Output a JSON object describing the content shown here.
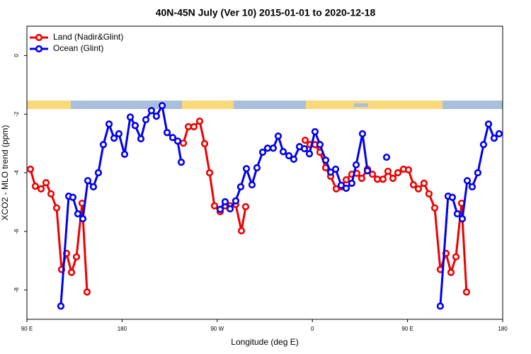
{
  "chart_data": {
    "type": "line",
    "title": "40N-45N July (Ver 10)   2015-01-01 to 2020-12-18",
    "x_label": "Longitude (deg E)",
    "y_label": "XCO2 - MLO trend (ppm)",
    "xlim": [
      90,
      540
    ],
    "xticks": [
      {
        "value": 90,
        "label": "90 E"
      },
      180,
      {
        "value": 270,
        "label": "90 W"
      },
      {
        "value": 360,
        "label": "0"
      },
      {
        "value": 450,
        "label": "90 E"
      },
      {
        "value": 540,
        "label": "180"
      }
    ],
    "ylim": [
      -9,
      1
    ],
    "yticks": [
      -8,
      -6,
      -4,
      -2,
      0
    ],
    "legend": "top-left",
    "series": [
      {
        "name": "Land (Nadir&Glint)",
        "color": "#ee0000",
        "x": [
          93.3,
          98.0,
          103.4,
          108.1,
          112.8,
          118.1,
          122.8,
          127.5,
          132.2,
          136.9,
          142.2,
          146.9,
          200,
          238.0,
          242.7,
          248.0,
          253.4,
          258.1,
          262.8,
          267.4,
          272.8,
          277.5,
          282.2,
          287.5,
          292.9,
          296.9,
          330,
          353.2,
          357.8,
          362.5,
          367.2,
          372.6,
          377.3,
          382.6,
          387.3,
          392.0,
          397.3,
          402.0,
          406.7,
          412.1,
          416.8,
          421.5,
          426.8,
          431.5,
          436.2,
          440.9,
          446.2,
          450.9,
          455.6,
          460.3,
          465.6,
          470.3,
          475.7,
          481.0,
          486.4,
          491.1,
          495.8,
          501.1,
          505.8
        ],
        "values": [
          -3.88,
          -4.46,
          -4.55,
          -4.34,
          -4.72,
          -5.2,
          -7.3,
          -6.75,
          -7.4,
          -6.87,
          -5.04,
          -8.07,
          null,
          -2.99,
          -2.43,
          -2.43,
          -2.24,
          -3.01,
          -4.0,
          -5.13,
          -5.33,
          -5.13,
          -5.13,
          -5.08,
          -5.98,
          -5.16,
          null,
          -2.89,
          -3.04,
          -3.04,
          -3.3,
          -3.83,
          -4.12,
          -4.55,
          -4.48,
          -4.24,
          -4.05,
          -4.02,
          -4.19,
          -3.88,
          -4.05,
          -4.22,
          -4.22,
          -3.95,
          -4.19,
          -4.0,
          -3.88,
          -3.9,
          -4.41,
          -4.55,
          -4.36,
          -4.72,
          -5.2,
          -7.3,
          -6.75,
          -7.4,
          -6.87,
          -5.04,
          -8.07
        ]
      },
      {
        "name": "Ocean (Glint)",
        "color": "#0000ee",
        "x": [
          122.1,
          129.5,
          133.5,
          138.2,
          142.9,
          147.6,
          152.9,
          157.6,
          162.3,
          167.7,
          172.4,
          177.0,
          182.4,
          187.8,
          192.4,
          197.8,
          202.5,
          207.8,
          212.5,
          217.9,
          222.6,
          227.9,
          232.6,
          236.0,
          270,
          272.8,
          277.5,
          282.2,
          287.5,
          292.2,
          297.6,
          302.9,
          307.6,
          313.0,
          317.7,
          323.0,
          327.7,
          332.4,
          337.8,
          342.4,
          347.8,
          352.5,
          357.2,
          362.5,
          367.2,
          372.6,
          377.3,
          382.0,
          387.3,
          392.0,
          397.3,
          401.4,
          407.4,
          412.1,
          420,
          430.2,
          460,
          481.0,
          488.4,
          492.4,
          497.1,
          501.8,
          506.5,
          511.2,
          516.5,
          521.9,
          526.6,
          531.9,
          536.6
        ],
        "values": [
          -8.55,
          -4.8,
          -4.84,
          -5.4,
          -5.57,
          -4.27,
          -4.48,
          -4.0,
          -3.04,
          -2.34,
          -2.82,
          -2.67,
          -3.37,
          -2.1,
          -2.39,
          -2.84,
          -2.19,
          -1.88,
          -2.07,
          -1.71,
          -2.63,
          -2.8,
          -2.92,
          -3.64,
          null,
          -5.25,
          -4.99,
          -5.23,
          -4.96,
          -4.48,
          -3.86,
          -4.41,
          -3.83,
          -3.3,
          -3.16,
          -3.16,
          -2.75,
          -3.28,
          -3.42,
          -3.54,
          -3.11,
          -3.18,
          -3.35,
          -2.6,
          -3.04,
          -3.57,
          -3.98,
          -3.88,
          -4.43,
          -4.53,
          -4.36,
          -3.73,
          -2.67,
          -3.93,
          null,
          -3.47,
          null,
          -8.55,
          -4.8,
          -4.84,
          -5.4,
          -5.57,
          -4.27,
          -4.48,
          -4.0,
          -3.04,
          -2.34,
          -2.82,
          -2.67
        ]
      }
    ]
  }
}
